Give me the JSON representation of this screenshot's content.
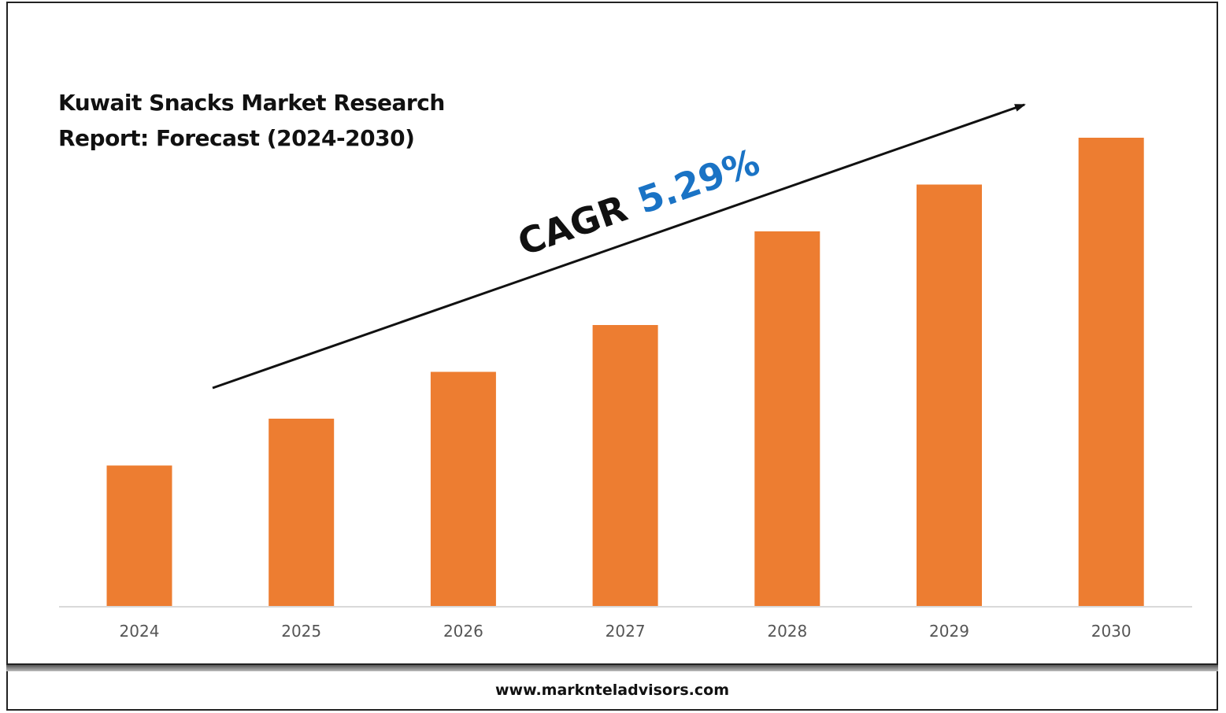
{
  "footer": {
    "website": "www.marknteladvisors.com"
  },
  "annotation": {
    "label": "CAGR",
    "value": "5.29%"
  },
  "colors": {
    "bar": "#ed7d31",
    "cagr_value": "#1a73c5",
    "axis": "#d9d9d9"
  },
  "chart_data": {
    "type": "bar",
    "title": "Kuwait Snacks Market Research Report: Forecast (2024-2030)",
    "categories": [
      "2024",
      "2025",
      "2026",
      "2027",
      "2028",
      "2029",
      "2030"
    ],
    "series": [
      {
        "values": [
          30,
          40,
          50,
          60,
          80,
          90,
          100
        ]
      }
    ],
    "ylim": [
      0,
      100
    ],
    "xlabel": "",
    "ylabel": "",
    "grid": false,
    "legend": "none"
  }
}
